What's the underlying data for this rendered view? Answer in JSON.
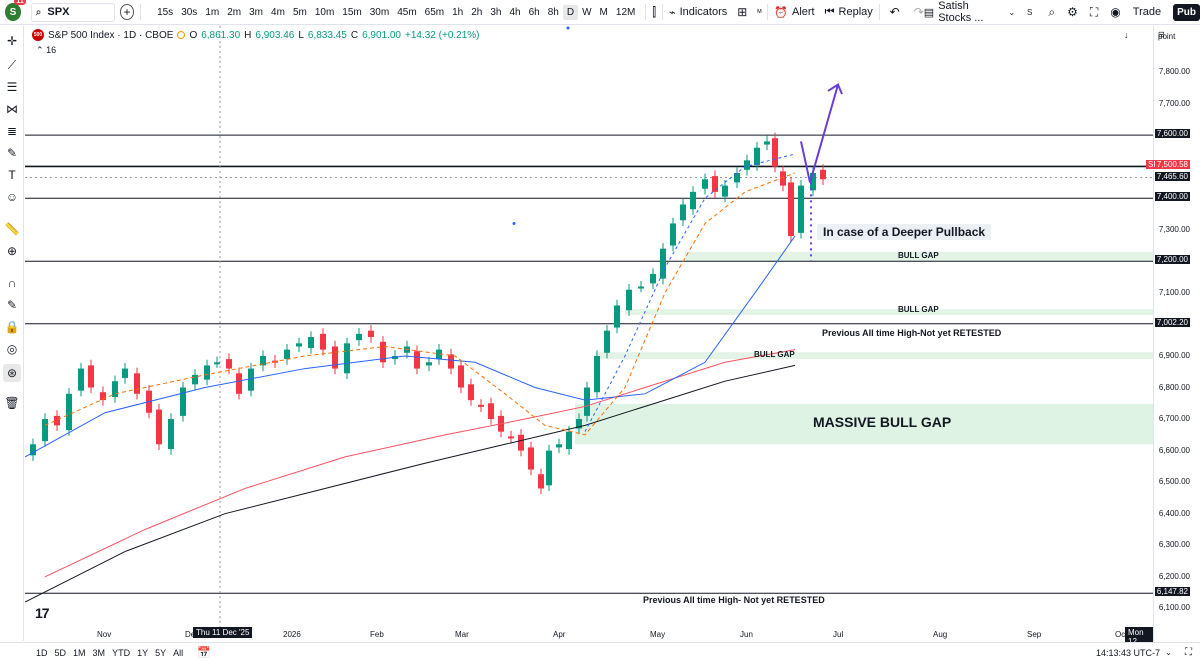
{
  "toolbar": {
    "avatar_letter": "S",
    "avatar_badge": "11",
    "symbol": "SPX",
    "intervals": [
      "15s",
      "30s",
      "1m",
      "2m",
      "3m",
      "4m",
      "5m",
      "10m",
      "15m",
      "30m",
      "45m",
      "65m",
      "1h",
      "2h",
      "3h",
      "4h",
      "6h",
      "8h",
      "D",
      "W",
      "M",
      "12M"
    ],
    "active_interval": "D",
    "indicators_label": "Indicators",
    "alert_label": "Alert",
    "replay_label": "Replay",
    "layout_name": "Satish Stocks ...",
    "layout_letter": "S",
    "trade_label": "Trade",
    "publish_label": "Pub"
  },
  "legend": {
    "title": "S&P 500 Index · 1D · CBOE",
    "logo_text": "500",
    "open_label": "O",
    "open": "6,861.30",
    "high_label": "H",
    "high": "6,903.46",
    "low_label": "L",
    "low": "6,833.45",
    "close_label": "C",
    "close": "6,901.00",
    "change": "+14.32 (+0.21%)",
    "indicator_count": "16"
  },
  "axis": {
    "mode_label": "point",
    "price_labels": [
      "7,800.00",
      "7,700.00",
      "7,300.00",
      "7,100.00",
      "6,900.00",
      "6,800.00",
      "6,700.00",
      "6,600.00",
      "6,500.00",
      "6,400.00",
      "6,300.00",
      "6,200.00",
      "6,100.00"
    ],
    "boxed": [
      {
        "text": "7,600.00",
        "kind": "line"
      },
      {
        "text": "SPX",
        "kind": "symbol"
      },
      {
        "text": "7,500.58",
        "kind": "cur"
      },
      {
        "text": "7,465.60",
        "kind": "line"
      },
      {
        "text": "7,400.00",
        "kind": "line"
      },
      {
        "text": "7,200.00",
        "kind": "line"
      },
      {
        "text": "7,002.20",
        "kind": "line"
      },
      {
        "text": "6,147.82",
        "kind": "line"
      }
    ],
    "date_labels": [
      "Nov",
      "Dec",
      "2026",
      "Feb",
      "Mar",
      "Apr",
      "May",
      "Jun",
      "Jul",
      "Aug",
      "Sep",
      "Oc"
    ],
    "crosshair_date": "Thu 11 Dec '25",
    "end_date": "Mon 12"
  },
  "annotations": {
    "deeper_pullback": "In case of a Deeper Pullback",
    "bull_gap_1": "BULL GAP",
    "bull_gap_2": "BULL GAP",
    "bull_gap_3": "BULL GAP",
    "prev_ath_1": "Previous All time High-Not yet RETESTED",
    "massive_gap": "MASSIVE BULL GAP",
    "prev_ath_2": "Previous All time High- Not yet RETESTED",
    "tv_logo": "17"
  },
  "bottombar": {
    "ranges": [
      "1D",
      "5D",
      "1M",
      "3M",
      "YTD",
      "1Y",
      "5Y",
      "All"
    ],
    "time": "14:13:43 UTC-7"
  },
  "colors": {
    "up": "#089981",
    "down": "#f23645",
    "ema_fast": "#2962ff",
    "ema_orange": "#ff6d00",
    "sma_blue": "#2962ff",
    "sma_red": "#f7525f",
    "sma_black": "#131722",
    "gap_fill": "#d7f0dd",
    "arrow": "#6a3ed6"
  }
}
